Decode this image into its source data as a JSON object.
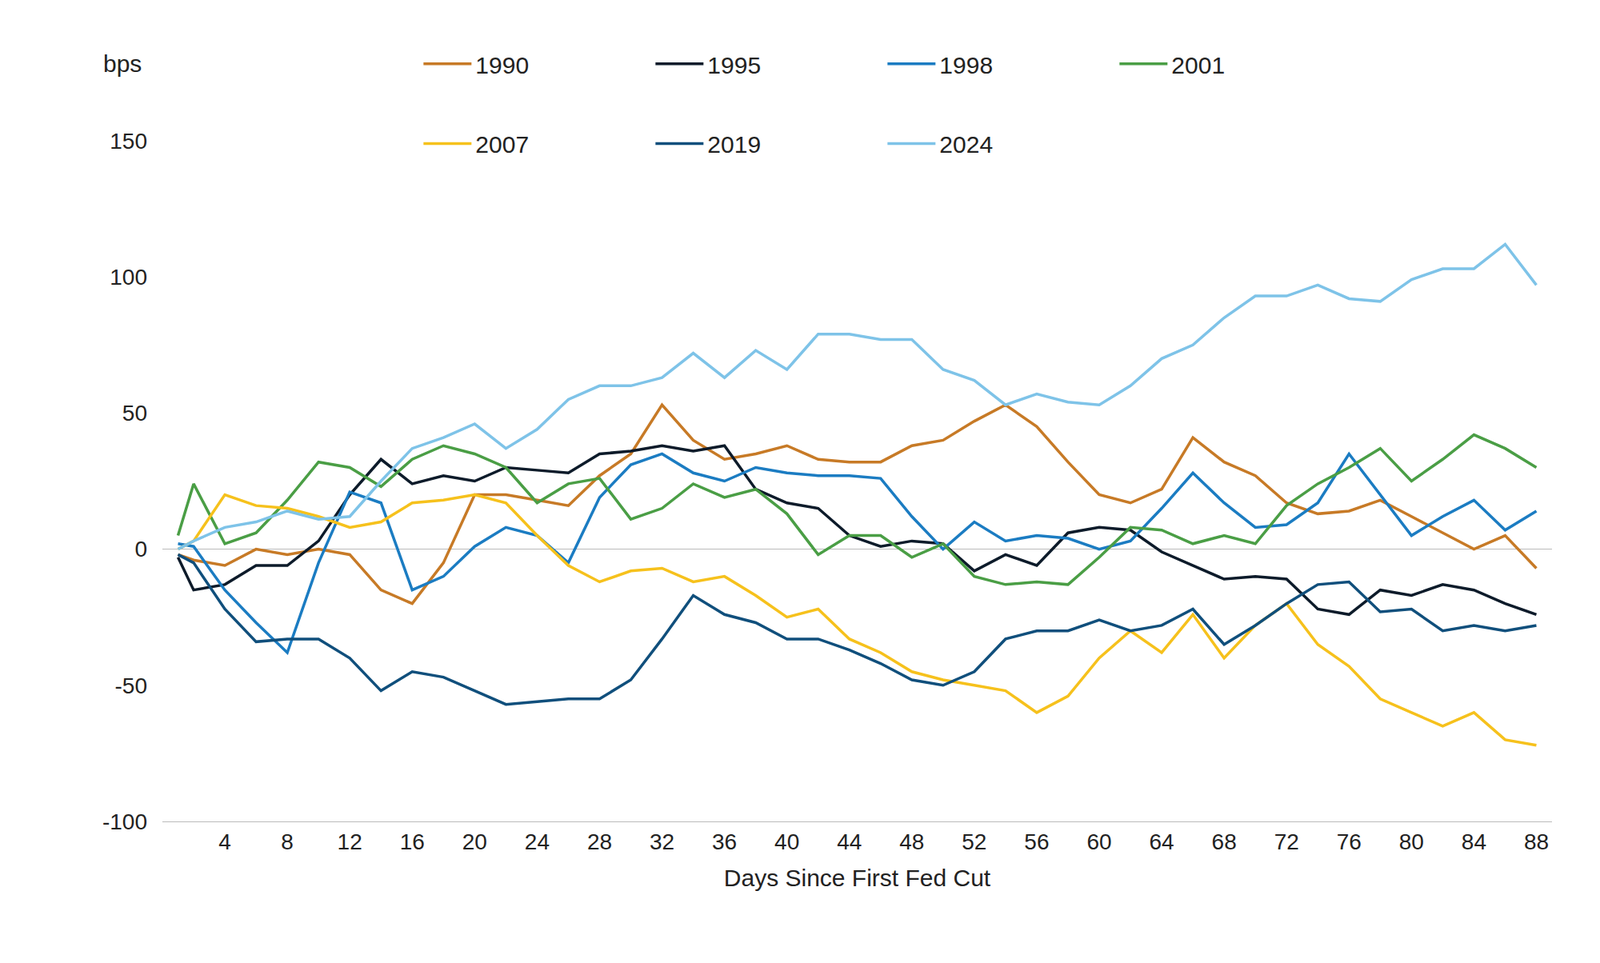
{
  "chart_data": {
    "type": "line",
    "x_label": "Days Since First Fed Cut",
    "y_label": "bps",
    "x": [
      1,
      2,
      4,
      6,
      8,
      10,
      12,
      14,
      16,
      18,
      20,
      22,
      24,
      26,
      28,
      30,
      32,
      34,
      36,
      38,
      40,
      42,
      44,
      46,
      48,
      50,
      52,
      54,
      56,
      58,
      60,
      62,
      64,
      66,
      68,
      70,
      72,
      74,
      76,
      78,
      80,
      82,
      84,
      86,
      88
    ],
    "series": [
      {
        "name": "1990",
        "color": "#c77a26",
        "values": [
          -2,
          -4,
          -6,
          0,
          -2,
          0,
          -2,
          -15,
          -20,
          -5,
          20,
          20,
          18,
          16,
          27,
          35,
          53,
          40,
          33,
          35,
          38,
          33,
          32,
          32,
          38,
          40,
          47,
          53,
          45,
          32,
          20,
          17,
          22,
          41,
          32,
          27,
          17,
          13,
          14,
          18,
          12,
          6,
          0,
          5,
          -7
        ]
      },
      {
        "name": "1995",
        "color": "#0d1b2a",
        "values": [
          -3,
          -15,
          -13,
          -6,
          -6,
          3,
          20,
          33,
          24,
          27,
          25,
          30,
          29,
          28,
          35,
          36,
          38,
          36,
          38,
          22,
          17,
          15,
          5,
          1,
          3,
          2,
          -8,
          -2,
          -6,
          6,
          8,
          7,
          -1,
          -6,
          -11,
          -10,
          -11,
          -22,
          -24,
          -15,
          -17,
          -13,
          -15,
          -20,
          -24
        ]
      },
      {
        "name": "1998",
        "color": "#1b7cc2",
        "values": [
          2,
          1,
          -15,
          -27,
          -38,
          -5,
          21,
          17,
          -15,
          -10,
          1,
          8,
          5,
          -5,
          19,
          31,
          35,
          28,
          25,
          30,
          28,
          27,
          27,
          26,
          12,
          0,
          10,
          3,
          5,
          4,
          0,
          3,
          15,
          28,
          17,
          8,
          9,
          17,
          35,
          20,
          5,
          12,
          18,
          7,
          14
        ]
      },
      {
        "name": "2001",
        "color": "#4a9e45",
        "values": [
          5,
          24,
          2,
          6,
          18,
          32,
          30,
          23,
          33,
          38,
          35,
          30,
          17,
          24,
          26,
          11,
          15,
          24,
          19,
          22,
          13,
          -2,
          5,
          5,
          -3,
          2,
          -10,
          -13,
          -12,
          -13,
          -3,
          8,
          7,
          2,
          5,
          2,
          16,
          24,
          30,
          37,
          25,
          33,
          42,
          37,
          30
        ]
      },
      {
        "name": "2007",
        "color": "#f6c11c",
        "values": [
          0,
          3,
          20,
          16,
          15,
          12,
          8,
          10,
          17,
          18,
          20,
          17,
          5,
          -6,
          -12,
          -8,
          -7,
          -12,
          -10,
          -17,
          -25,
          -22,
          -33,
          -38,
          -45,
          -48,
          -50,
          -52,
          -60,
          -54,
          -40,
          -30,
          -38,
          -24,
          -40,
          -28,
          -20,
          -35,
          -43,
          -55,
          -60,
          -65,
          -60,
          -70,
          -72
        ]
      },
      {
        "name": "2019",
        "color": "#104f7c",
        "values": [
          -2,
          -5,
          -22,
          -34,
          -33,
          -33,
          -40,
          -52,
          -45,
          -47,
          -52,
          -57,
          -56,
          -55,
          -55,
          -48,
          -33,
          -17,
          -24,
          -27,
          -33,
          -33,
          -37,
          -42,
          -48,
          -50,
          -45,
          -33,
          -30,
          -30,
          -26,
          -30,
          -28,
          -22,
          -35,
          -28,
          -20,
          -13,
          -12,
          -23,
          -22,
          -30,
          -28,
          -30,
          -28
        ]
      },
      {
        "name": "2024",
        "color": "#7ec3e8",
        "values": [
          0,
          3,
          8,
          10,
          14,
          11,
          12,
          25,
          37,
          41,
          46,
          37,
          44,
          55,
          60,
          60,
          63,
          72,
          63,
          73,
          66,
          79,
          79,
          77,
          77,
          66,
          62,
          53,
          57,
          54,
          53,
          60,
          70,
          75,
          85,
          93,
          93,
          97,
          92,
          91,
          99,
          103,
          103,
          112,
          97
        ]
      }
    ],
    "xlim": [
      0,
      89
    ],
    "ylim": [
      -100,
      150
    ],
    "xticks": [
      4,
      8,
      12,
      16,
      20,
      24,
      28,
      32,
      36,
      40,
      44,
      48,
      52,
      56,
      60,
      64,
      68,
      72,
      76,
      80,
      84,
      88
    ],
    "yticks": [
      -100,
      -50,
      0,
      50,
      100,
      150
    ],
    "grid": false,
    "legend": "top"
  }
}
